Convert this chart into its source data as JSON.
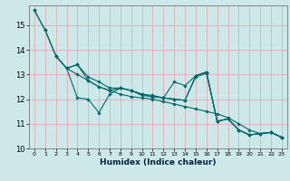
{
  "xlabel": "Humidex (Indice chaleur)",
  "background_color": "#cce8e8",
  "grid_color": "#e8a0a8",
  "line_color": "#006868",
  "xlim": [
    -0.5,
    23.5
  ],
  "ylim": [
    10.0,
    15.8
  ],
  "yticks": [
    10,
    11,
    12,
    13,
    14,
    15
  ],
  "xticks": [
    0,
    1,
    2,
    3,
    4,
    5,
    6,
    7,
    8,
    9,
    10,
    11,
    12,
    13,
    14,
    15,
    16,
    17,
    18,
    19,
    20,
    21,
    22,
    23
  ],
  "series": [
    {
      "x": [
        0,
        1,
        2,
        3,
        4,
        5,
        6,
        7,
        8,
        9,
        10,
        11,
        12,
        13,
        14,
        15,
        16,
        17,
        18,
        19,
        20,
        21,
        22,
        23
      ],
      "y": [
        15.6,
        14.8,
        13.75,
        13.25,
        13.0,
        12.75,
        12.5,
        12.35,
        12.2,
        12.1,
        12.05,
        12.0,
        11.9,
        11.8,
        11.7,
        11.6,
        11.5,
        11.4,
        11.25,
        11.0,
        10.75,
        10.6,
        10.65,
        10.45
      ]
    },
    {
      "x": [
        0,
        1,
        2,
        3,
        4,
        5,
        6,
        7,
        8,
        9,
        10,
        11,
        12,
        13,
        14,
        15,
        16,
        17,
        18,
        19,
        20,
        21,
        22,
        23
      ],
      "y": [
        15.6,
        14.8,
        13.75,
        13.25,
        12.05,
        12.0,
        11.45,
        12.2,
        12.45,
        12.35,
        12.15,
        12.1,
        12.05,
        12.7,
        12.55,
        12.95,
        13.1,
        11.1,
        11.2,
        10.75,
        10.55,
        10.6,
        10.65,
        10.45
      ]
    },
    {
      "x": [
        2,
        3,
        4,
        5,
        6,
        7,
        8,
        9,
        10,
        11,
        12,
        13,
        14,
        15,
        16,
        17,
        18,
        19,
        20,
        21,
        22,
        23
      ],
      "y": [
        13.75,
        13.25,
        13.4,
        12.9,
        12.7,
        12.45,
        12.45,
        12.35,
        12.2,
        12.15,
        12.05,
        12.0,
        11.95,
        12.95,
        13.1,
        11.1,
        11.2,
        10.75,
        10.55,
        10.6,
        10.65,
        10.45
      ]
    },
    {
      "x": [
        3,
        4,
        5,
        6,
        7,
        8,
        9,
        10,
        11,
        12,
        13,
        14,
        15,
        16,
        17,
        18,
        19,
        20,
        21,
        22,
        23
      ],
      "y": [
        13.25,
        13.4,
        12.75,
        12.5,
        12.35,
        12.45,
        12.35,
        12.2,
        12.1,
        12.05,
        12.0,
        11.95,
        12.9,
        13.05,
        11.1,
        11.2,
        10.75,
        10.55,
        10.6,
        10.65,
        10.45
      ]
    }
  ]
}
